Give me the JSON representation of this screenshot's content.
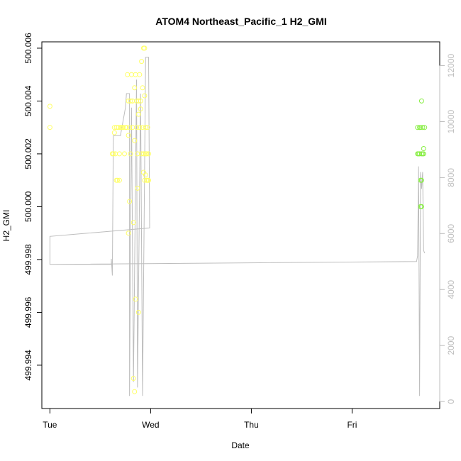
{
  "chart_data": {
    "type": "scatter",
    "title": "ATOM4 Northeast_Pacific_1 H2_GMI",
    "xlabel": "Date",
    "ylabel": "H2_GMI",
    "x_tick_labels": [
      "Tue",
      "Wed",
      "Thu",
      "Fri"
    ],
    "x_range_days": [
      -0.08,
      3.87
    ],
    "ylim": [
      499.99236,
      500.00624
    ],
    "y_ticks": [
      499.994,
      499.996,
      499.998,
      500.0,
      500.002,
      500.004,
      500.006
    ],
    "y_tick_labels": [
      "499.994",
      "499.996",
      "499.998",
      "500.000",
      "500.002",
      "500.004",
      "500.006"
    ],
    "y2lim": [
      -250,
      12850
    ],
    "y2_ticks": [
      0,
      2000,
      4000,
      6000,
      8000,
      10000,
      12000
    ],
    "y2_tick_labels": [
      "0",
      "2000",
      "4000",
      "6000",
      "8000",
      "10000",
      "12000"
    ],
    "grid": false,
    "legend": "none",
    "colors": {
      "point_low": "#ffff66",
      "point_high": "#88ee44",
      "line": "#bdbdbd",
      "axis": "#000000",
      "axis_right": "#bdbdbd"
    },
    "points": [
      {
        "x": 0.0,
        "y": 500.0038
      },
      {
        "x": 0.0,
        "y": 500.003
      },
      {
        "x": 0.62,
        "y": 500.002
      },
      {
        "x": 0.63,
        "y": 500.002
      },
      {
        "x": 0.64,
        "y": 500.0028
      },
      {
        "x": 0.64,
        "y": 500.003
      },
      {
        "x": 0.65,
        "y": 500.002
      },
      {
        "x": 0.66,
        "y": 500.003
      },
      {
        "x": 0.66,
        "y": 500.001
      },
      {
        "x": 0.67,
        "y": 500.001
      },
      {
        "x": 0.68,
        "y": 500.003
      },
      {
        "x": 0.69,
        "y": 500.002
      },
      {
        "x": 0.69,
        "y": 500.001
      },
      {
        "x": 0.7,
        "y": 500.003
      },
      {
        "x": 0.71,
        "y": 500.003
      },
      {
        "x": 0.72,
        "y": 500.003
      },
      {
        "x": 0.73,
        "y": 500.003
      },
      {
        "x": 0.74,
        "y": 500.002
      },
      {
        "x": 0.75,
        "y": 500.003
      },
      {
        "x": 0.76,
        "y": 500.003
      },
      {
        "x": 0.77,
        "y": 500.005
      },
      {
        "x": 0.78,
        "y": 500.0027
      },
      {
        "x": 0.78,
        "y": 500.004
      },
      {
        "x": 0.78,
        "y": 499.999
      },
      {
        "x": 0.79,
        "y": 500.0002
      },
      {
        "x": 0.79,
        "y": 500.003
      },
      {
        "x": 0.8,
        "y": 500.004
      },
      {
        "x": 0.8,
        "y": 500.002
      },
      {
        "x": 0.81,
        "y": 500.005
      },
      {
        "x": 0.82,
        "y": 500.003
      },
      {
        "x": 0.82,
        "y": 500.004
      },
      {
        "x": 0.83,
        "y": 499.9994
      },
      {
        "x": 0.83,
        "y": 499.9935
      },
      {
        "x": 0.84,
        "y": 499.993
      },
      {
        "x": 0.84,
        "y": 500.0045
      },
      {
        "x": 0.84,
        "y": 500.0025
      },
      {
        "x": 0.85,
        "y": 500.005
      },
      {
        "x": 0.85,
        "y": 499.9965
      },
      {
        "x": 0.86,
        "y": 500.004
      },
      {
        "x": 0.86,
        "y": 500.003
      },
      {
        "x": 0.87,
        "y": 500.002
      },
      {
        "x": 0.87,
        "y": 500.0007
      },
      {
        "x": 0.88,
        "y": 500.004
      },
      {
        "x": 0.88,
        "y": 500.0035
      },
      {
        "x": 0.88,
        "y": 499.996
      },
      {
        "x": 0.89,
        "y": 500.005
      },
      {
        "x": 0.89,
        "y": 500.003
      },
      {
        "x": 0.9,
        "y": 500.004
      },
      {
        "x": 0.9,
        "y": 500.0037
      },
      {
        "x": 0.91,
        "y": 500.0055
      },
      {
        "x": 0.91,
        "y": 500.002
      },
      {
        "x": 0.92,
        "y": 500.003
      },
      {
        "x": 0.92,
        "y": 500.0045
      },
      {
        "x": 0.93,
        "y": 500.006
      },
      {
        "x": 0.93,
        "y": 500.0013
      },
      {
        "x": 0.93,
        "y": 500.002
      },
      {
        "x": 0.94,
        "y": 500.006
      },
      {
        "x": 0.94,
        "y": 500.001
      },
      {
        "x": 0.94,
        "y": 500.0042
      },
      {
        "x": 0.95,
        "y": 500.003
      },
      {
        "x": 0.95,
        "y": 500.002
      },
      {
        "x": 0.95,
        "y": 500.0012
      },
      {
        "x": 0.96,
        "y": 500.001
      },
      {
        "x": 0.96,
        "y": 500.002
      },
      {
        "x": 0.97,
        "y": 500.001
      },
      {
        "x": 0.97,
        "y": 500.003
      },
      {
        "x": 0.98,
        "y": 500.002
      },
      {
        "x": 0.98,
        "y": 500.001
      },
      {
        "x": 3.65,
        "y": 500.003
      },
      {
        "x": 3.65,
        "y": 500.002
      },
      {
        "x": 3.66,
        "y": 500.002
      },
      {
        "x": 3.67,
        "y": 500.003
      },
      {
        "x": 3.67,
        "y": 500.002
      },
      {
        "x": 3.68,
        "y": 500.003
      },
      {
        "x": 3.68,
        "y": 500.001
      },
      {
        "x": 3.68,
        "y": 500.0
      },
      {
        "x": 3.69,
        "y": 500.004
      },
      {
        "x": 3.69,
        "y": 500.002
      },
      {
        "x": 3.69,
        "y": 500.001
      },
      {
        "x": 3.69,
        "y": 500.0
      },
      {
        "x": 3.7,
        "y": 500.003
      },
      {
        "x": 3.7,
        "y": 500.002
      },
      {
        "x": 3.71,
        "y": 500.0022
      },
      {
        "x": 3.71,
        "y": 500.002
      },
      {
        "x": 3.72,
        "y": 500.003
      }
    ],
    "line_y2": [
      {
        "x": 0.0,
        "y": 5900
      },
      {
        "x": 0.0,
        "y": 4900
      },
      {
        "x": 0.61,
        "y": 4900
      },
      {
        "x": 0.61,
        "y": 5100
      },
      {
        "x": 0.62,
        "y": 4500
      },
      {
        "x": 0.63,
        "y": 9500
      },
      {
        "x": 0.7,
        "y": 9500
      },
      {
        "x": 0.75,
        "y": 10500
      },
      {
        "x": 0.76,
        "y": 11000
      },
      {
        "x": 0.79,
        "y": 11000
      },
      {
        "x": 0.79,
        "y": 200
      },
      {
        "x": 0.81,
        "y": 10500
      },
      {
        "x": 0.83,
        "y": 700
      },
      {
        "x": 0.86,
        "y": 11500
      },
      {
        "x": 0.87,
        "y": 500
      },
      {
        "x": 0.9,
        "y": 11000
      },
      {
        "x": 0.92,
        "y": 200
      },
      {
        "x": 0.95,
        "y": 12300
      },
      {
        "x": 0.98,
        "y": 12300
      },
      {
        "x": 0.99,
        "y": 6200
      },
      {
        "x": 0.0,
        "y": 5900
      },
      {
        "x": 0.0,
        "y": 4900
      },
      {
        "x": 3.64,
        "y": 5000
      },
      {
        "x": 3.65,
        "y": 5200
      },
      {
        "x": 3.66,
        "y": 8400
      },
      {
        "x": 3.67,
        "y": 200
      },
      {
        "x": 3.68,
        "y": 8200
      },
      {
        "x": 3.69,
        "y": 7600
      },
      {
        "x": 3.7,
        "y": 8200
      },
      {
        "x": 3.71,
        "y": 5400
      },
      {
        "x": 3.72,
        "y": 5300
      }
    ]
  }
}
